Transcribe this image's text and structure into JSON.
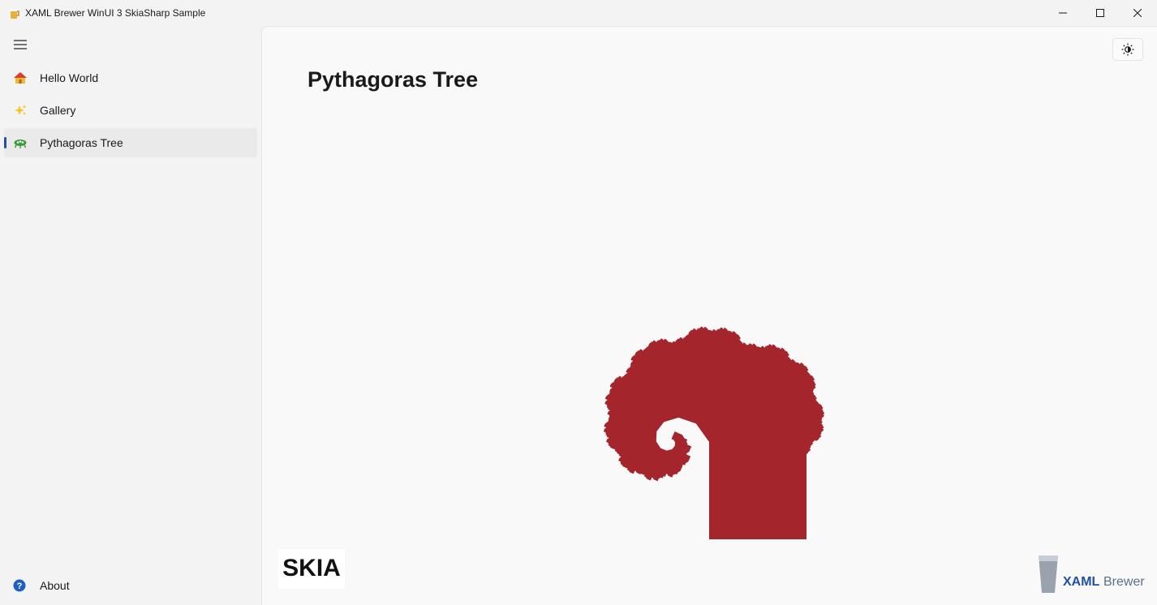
{
  "window": {
    "title": "XAML Brewer WinUI 3 SkiaSharp Sample",
    "controls": [
      "minimize-icon",
      "maximize-icon",
      "close-icon"
    ]
  },
  "sidebar": {
    "menu_icon": "hamburger-icon",
    "items": [
      {
        "label": "Hello World",
        "icon": "home-icon",
        "selected": false
      },
      {
        "label": "Gallery",
        "icon": "sparkles-icon",
        "selected": false
      },
      {
        "label": "Pythagoras Tree",
        "icon": "alien-icon",
        "selected": true
      }
    ],
    "footer_item": {
      "label": "About",
      "icon": "help-icon"
    }
  },
  "main": {
    "title": "Pythagoras Tree",
    "theme_toggle_icon": "brightness-icon",
    "logos": {
      "skia": "SKIA",
      "brewer_bold": "XAML",
      "brewer_regular": "Brewer"
    }
  },
  "colors": {
    "accent": "#1f4fa8",
    "tree": "#a4262c",
    "content_bg": "#f9f9f9",
    "sidebar_bg": "#f3f3f3"
  }
}
